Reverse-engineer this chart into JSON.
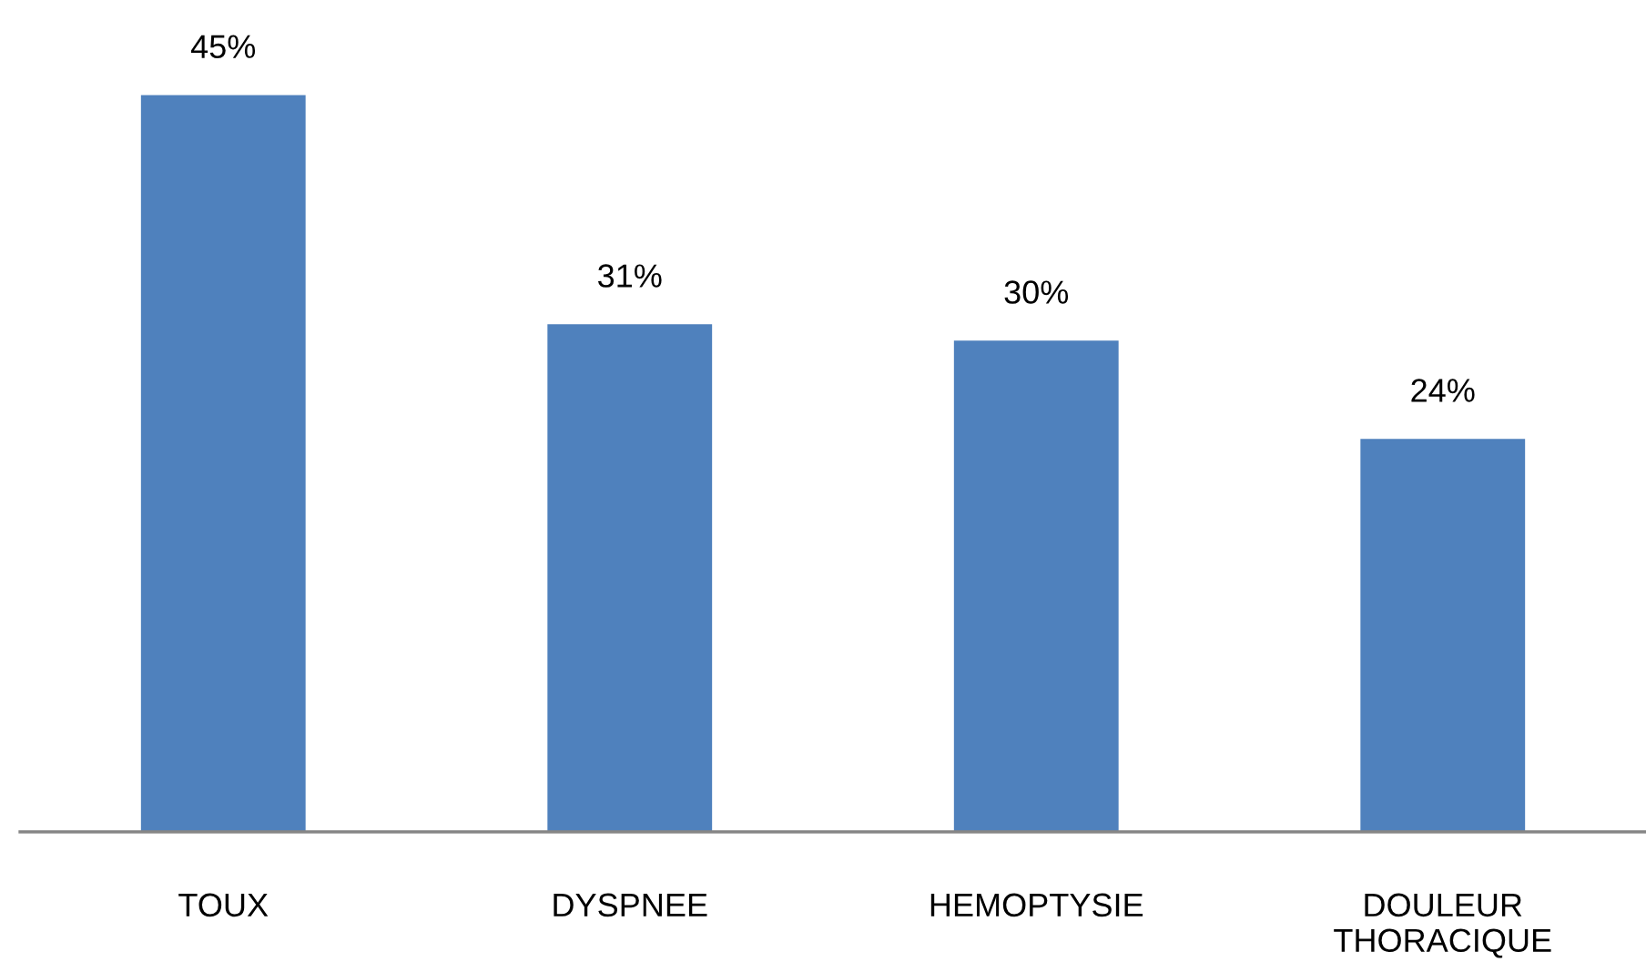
{
  "chart_data": {
    "type": "bar",
    "categories": [
      "TOUX",
      "DYSPNEE",
      "HEMOPTYSIE",
      "DOULEUR\nTHORACIQUE"
    ],
    "values": [
      45,
      31,
      30,
      24
    ],
    "value_labels": [
      "45%",
      "31%",
      "30%",
      "24%"
    ],
    "color": "#4f81bd",
    "tick_labels": "x"
  }
}
